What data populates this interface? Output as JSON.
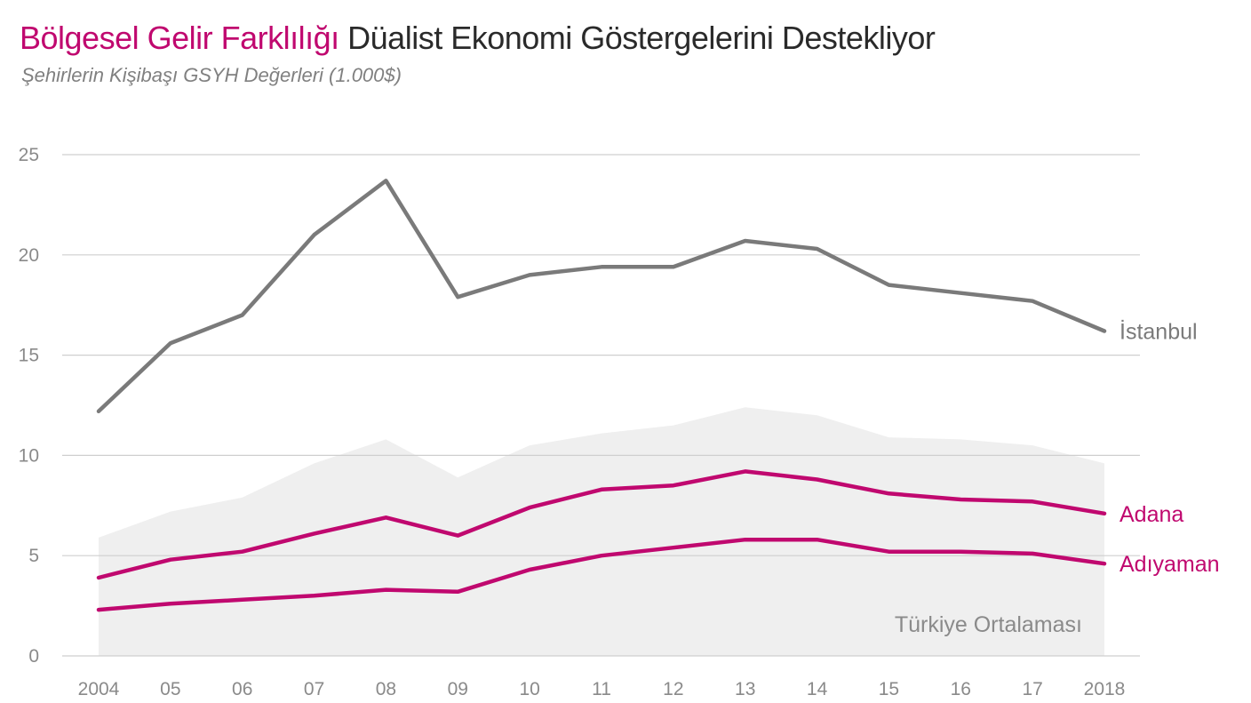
{
  "header": {
    "title_accent": "Bölgesel Gelir Farklılığı",
    "title_rest": "Düalist Ekonomi Göstergelerini Destekliyor",
    "subtitle": "Şehirlerin Kişibaşı GSYH Değerleri (1.000$)"
  },
  "chart_data": {
    "type": "line",
    "title": "Bölgesel Gelir Farklılığı Düalist Ekonomi Göstergelerini Destekliyor",
    "subtitle": "Şehirlerin Kişibaşı GSYH Değerleri (1.000$)",
    "categories": [
      "2004",
      "05",
      "06",
      "07",
      "08",
      "09",
      "10",
      "11",
      "12",
      "13",
      "14",
      "15",
      "16",
      "17",
      "2018"
    ],
    "ylim": [
      0,
      25
    ],
    "yticks": [
      0,
      5,
      10,
      15,
      20,
      25
    ],
    "grid": true,
    "series": [
      {
        "name": "İstanbul",
        "kind": "line",
        "color": "#7a7a7a",
        "values": [
          12.2,
          15.6,
          17.0,
          21.0,
          23.7,
          17.9,
          19.0,
          19.4,
          19.4,
          20.7,
          20.3,
          18.5,
          18.1,
          17.7,
          16.2
        ]
      },
      {
        "name": "Türkiye Ortalaması",
        "kind": "area",
        "color": "#efefef",
        "values": [
          5.9,
          7.2,
          7.9,
          9.6,
          10.8,
          8.9,
          10.5,
          11.1,
          11.5,
          12.4,
          12.0,
          10.9,
          10.8,
          10.5,
          9.6
        ]
      },
      {
        "name": "Adana",
        "kind": "line",
        "color": "#c0086f",
        "values": [
          3.9,
          4.8,
          5.2,
          6.1,
          6.9,
          6.0,
          7.4,
          8.3,
          8.5,
          9.2,
          8.8,
          8.1,
          7.8,
          7.7,
          7.1
        ]
      },
      {
        "name": "Adıyaman",
        "kind": "line",
        "color": "#c0086f",
        "values": [
          2.3,
          2.6,
          2.8,
          3.0,
          3.3,
          3.2,
          4.3,
          5.0,
          5.4,
          5.8,
          5.8,
          5.2,
          5.2,
          5.1,
          4.6
        ]
      }
    ]
  }
}
